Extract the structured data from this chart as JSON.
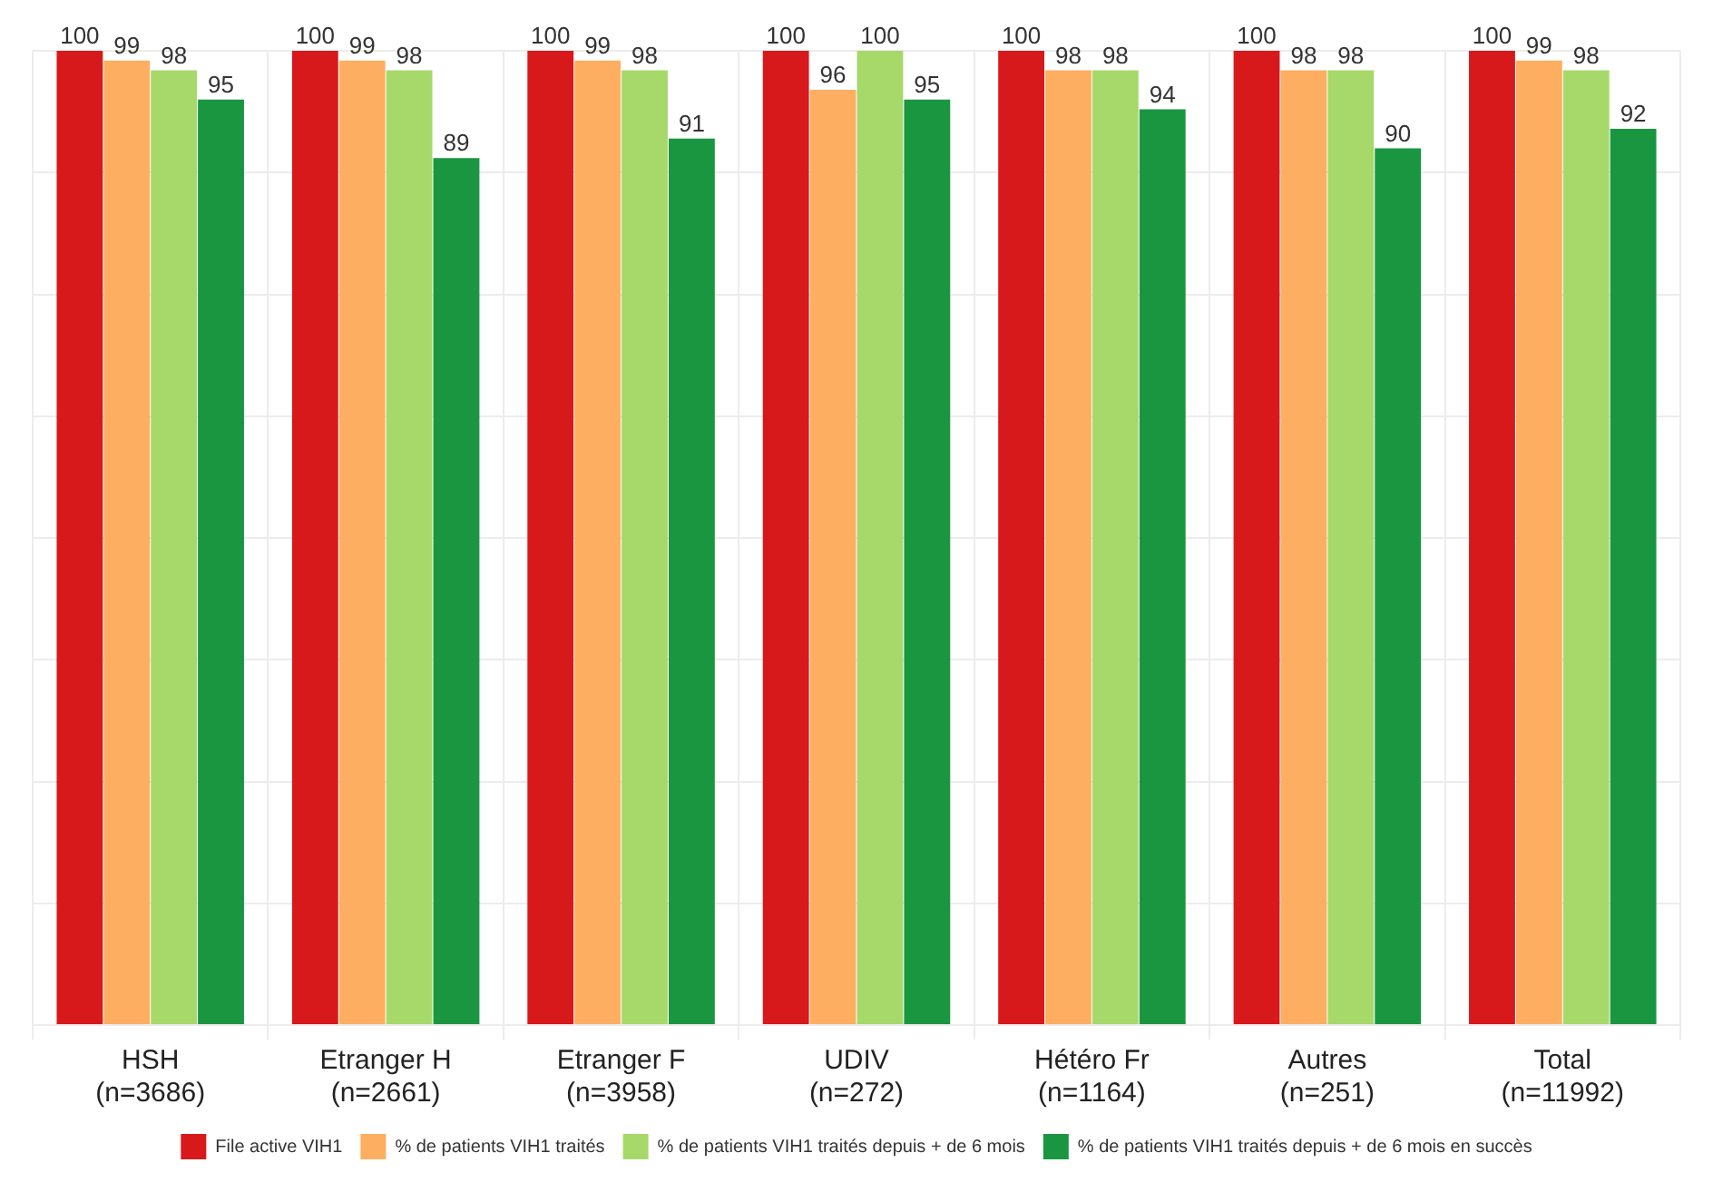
{
  "chart_data": {
    "type": "bar",
    "categories": [
      "HSH\n(n=3686)",
      "Etranger H\n(n=2661)",
      "Etranger F\n(n=3958)",
      "UDIV\n(n=272)",
      "Hétéro Fr\n(n=1164)",
      "Autres\n(n=251)",
      "Total\n(n=11992)"
    ],
    "series": [
      {
        "name": "File active VIH1",
        "color": "#d7191c",
        "values": [
          100,
          100,
          100,
          100,
          100,
          100,
          100
        ]
      },
      {
        "name": "% de patients VIH1 traités",
        "color": "#fdae61",
        "values": [
          99,
          99,
          99,
          96,
          98,
          98,
          99
        ]
      },
      {
        "name": "% de patients VIH1 traités depuis + de 6 mois",
        "color": "#a6d96a",
        "values": [
          98,
          98,
          98,
          100,
          98,
          98,
          98
        ]
      },
      {
        "name": "% de patients VIH1 traités depuis + de 6 mois en succès",
        "color": "#1a9641",
        "values": [
          95,
          89,
          91,
          95,
          94,
          90,
          92
        ]
      }
    ],
    "ylim": [
      0,
      100
    ],
    "yticks": [
      {
        "value": 0,
        "label": null
      },
      {
        "value": 12.5,
        "label": null
      },
      {
        "value": 25,
        "label": null
      },
      {
        "value": 37.5,
        "label": null
      },
      {
        "value": 50,
        "label": null
      },
      {
        "value": 62.5,
        "label": null
      },
      {
        "value": 75,
        "label": null
      },
      {
        "value": 87.5,
        "label": null
      },
      {
        "value": 100,
        "label": null
      }
    ],
    "tick_labels": "x",
    "grid": true,
    "legend": "bottom",
    "data_labels": true
  }
}
